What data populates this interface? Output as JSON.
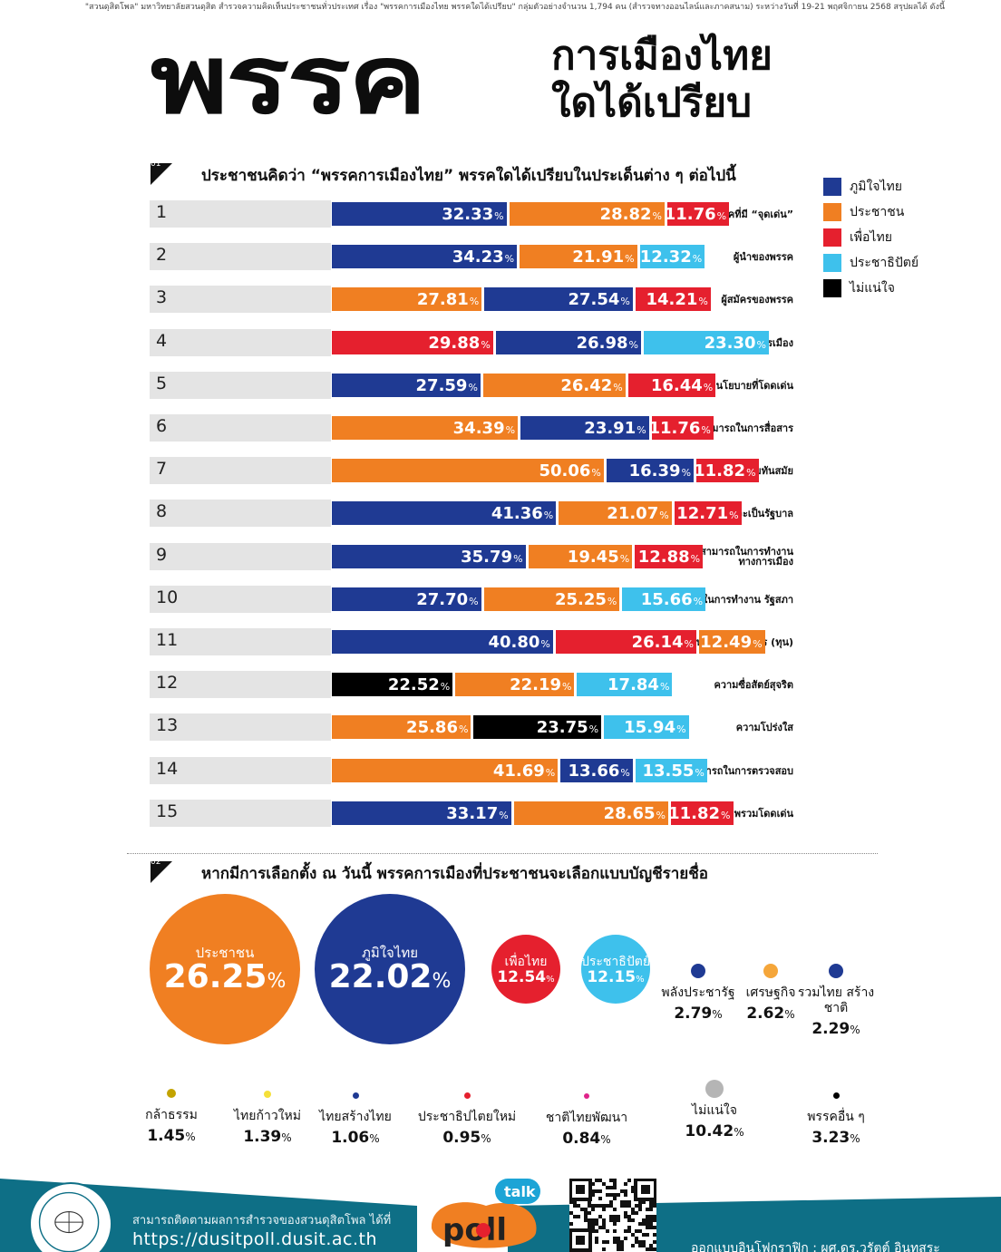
{
  "header": {
    "intro": "\"สวนดุสิตโพล\" มหาวิทยาลัยสวนดุสิต สำรวจความคิดเห็นประชาชนทั่วประเทศ เรื่อง \"พรรคการเมืองไทย พรรคใดได้เปรียบ\" กลุ่มตัวอย่างจำนวน 1,794 คน (สำรวจทางออนไลน์และภาคสนาม) ระหว่างวันที่ 19-21 พฤศจิกายน 2568 สรุปผลได้ ดังนี้",
    "title_big": "พรรค",
    "title_line1": "การเมืองไทย",
    "title_line2": "ใดได้เปรียบ"
  },
  "colors": {
    "bhumjaithai": "#1f3a93",
    "prachachon": "#f07f22",
    "pheuthai": "#e5202e",
    "democrat": "#3ec1ec",
    "unsure": "#000000",
    "footer_teal": "#0e6f86"
  },
  "section1": {
    "num": "01",
    "title": "ประชาชนคิดว่า “พรรคการเมืองไทย” พรรคใดได้เปรียบในประเด็นต่าง ๆ ต่อไปนี้"
  },
  "section2": {
    "num": "02",
    "title": "หากมีการเลือกตั้ง ณ วันนี้ พรรคการเมืองที่ประชาชนจะเลือกแบบบัญชีรายชื่อ"
  },
  "legend": [
    {
      "key": "bhumjaithai",
      "label": "ภูมิใจไทย"
    },
    {
      "key": "prachachon",
      "label": "ประชาชน"
    },
    {
      "key": "pheuthai",
      "label": "เพื่อไทย"
    },
    {
      "key": "democrat",
      "label": "ประชาธิปัตย์"
    },
    {
      "key": "unsure",
      "label": "ไม่แน่ใจ"
    }
  ],
  "chart_data": [
    {
      "type": "bar",
      "stacked": true,
      "orientation": "horizontal",
      "unit": "%",
      "rows": [
        {
          "num": "1",
          "label": "พรรคที่มี “จุดเด่น”",
          "segments": [
            {
              "party": "bhumjaithai",
              "value": 32.33
            },
            {
              "party": "prachachon",
              "value": 28.82
            },
            {
              "party": "pheuthai",
              "value": 11.76
            }
          ]
        },
        {
          "num": "2",
          "label": "ผู้นำของพรรค",
          "segments": [
            {
              "party": "bhumjaithai",
              "value": 34.23
            },
            {
              "party": "prachachon",
              "value": 21.91
            },
            {
              "party": "democrat",
              "value": 12.32
            }
          ]
        },
        {
          "num": "3",
          "label": "ผู้สมัครของพรรค",
          "segments": [
            {
              "party": "prachachon",
              "value": 27.81
            },
            {
              "party": "bhumjaithai",
              "value": 27.54
            },
            {
              "party": "pheuthai",
              "value": 14.21
            }
          ]
        },
        {
          "num": "4",
          "label": "ประสบการณ์ทางการเมือง",
          "segments": [
            {
              "party": "pheuthai",
              "value": 29.88
            },
            {
              "party": "bhumjaithai",
              "value": 26.98
            },
            {
              "party": "democrat",
              "value": 23.3
            }
          ]
        },
        {
          "num": "5",
          "label": "นโยบายที่โดดเด่น",
          "segments": [
            {
              "party": "bhumjaithai",
              "value": 27.59
            },
            {
              "party": "prachachon",
              "value": 26.42
            },
            {
              "party": "pheuthai",
              "value": 16.44
            }
          ]
        },
        {
          "num": "6",
          "label": "ความสามารถในการสื่อสาร",
          "segments": [
            {
              "party": "prachachon",
              "value": 34.39
            },
            {
              "party": "bhumjaithai",
              "value": 23.91
            },
            {
              "party": "pheuthai",
              "value": 11.76
            }
          ]
        },
        {
          "num": "7",
          "label": "ความทันสมัย",
          "segments": [
            {
              "party": "prachachon",
              "value": 50.06
            },
            {
              "party": "bhumjaithai",
              "value": 16.39
            },
            {
              "party": "pheuthai",
              "value": 11.82
            }
          ]
        },
        {
          "num": "8",
          "label": "ความพร้อมที่จะเป็นรัฐบาล",
          "segments": [
            {
              "party": "bhumjaithai",
              "value": 41.36
            },
            {
              "party": "prachachon",
              "value": 21.07
            },
            {
              "party": "pheuthai",
              "value": 12.71
            }
          ]
        },
        {
          "num": "9",
          "label": "ความสามารถในการทำงาน ทางการเมือง",
          "segments": [
            {
              "party": "bhumjaithai",
              "value": 35.79
            },
            {
              "party": "prachachon",
              "value": 19.45
            },
            {
              "party": "pheuthai",
              "value": 12.88
            }
          ]
        },
        {
          "num": "10",
          "label": "ความสามารถในการทำงาน รัฐสภา",
          "segments": [
            {
              "party": "bhumjaithai",
              "value": 27.7
            },
            {
              "party": "prachachon",
              "value": 25.25
            },
            {
              "party": "democrat",
              "value": 15.66
            }
          ]
        },
        {
          "num": "11",
          "label": "ความพร้อมในเรื่อง ทรัพยากร (ทุน)",
          "segments": [
            {
              "party": "bhumjaithai",
              "value": 40.8
            },
            {
              "party": "pheuthai",
              "value": 26.14
            },
            {
              "party": "prachachon",
              "value": 12.49
            }
          ]
        },
        {
          "num": "12",
          "label": "ความซื่อสัตย์สุจริต",
          "segments": [
            {
              "party": "unsure",
              "value": 22.52
            },
            {
              "party": "prachachon",
              "value": 22.19
            },
            {
              "party": "democrat",
              "value": 17.84
            }
          ]
        },
        {
          "num": "13",
          "label": "ความโปร่งใส",
          "segments": [
            {
              "party": "prachachon",
              "value": 25.86
            },
            {
              "party": "unsure",
              "value": 23.75
            },
            {
              "party": "democrat",
              "value": 15.94
            }
          ]
        },
        {
          "num": "14",
          "label": "ความสามารถในการตรวจสอบ",
          "segments": [
            {
              "party": "prachachon",
              "value": 41.69
            },
            {
              "party": "bhumjaithai",
              "value": 13.66
            },
            {
              "party": "democrat",
              "value": 13.55
            }
          ]
        },
        {
          "num": "15",
          "label": "พรรคที่มีภาพรวมโดดเด่น",
          "segments": [
            {
              "party": "bhumjaithai",
              "value": 33.17
            },
            {
              "party": "prachachon",
              "value": 28.65
            },
            {
              "party": "pheuthai",
              "value": 11.82
            }
          ]
        }
      ]
    },
    {
      "type": "bubble",
      "unit": "%",
      "items": [
        {
          "name": "ประชาชน",
          "value": 26.25,
          "color": "#f07f22"
        },
        {
          "name": "ภูมิใจไทย",
          "value": 22.02,
          "color": "#1f3a93"
        },
        {
          "name": "เพื่อไทย",
          "value": 12.54,
          "color": "#e5202e"
        },
        {
          "name": "ประชาธิปัตย์",
          "value": 12.15,
          "color": "#3ec1ec"
        },
        {
          "name": "พลังประชารัฐ",
          "value": 2.79,
          "color": "#1f3a93"
        },
        {
          "name": "เศรษฐกิจ",
          "value": 2.62,
          "color": "#f5a63a"
        },
        {
          "name": "รวมไทย สร้างชาติ",
          "value": 2.29,
          "color": "#1f3a93"
        },
        {
          "name": "กล้าธรรม",
          "value": 1.45,
          "color": "#c3a300"
        },
        {
          "name": "ไทยก้าวใหม่",
          "value": 1.39,
          "color": "#f5e03a"
        },
        {
          "name": "ไทยสร้างไทย",
          "value": 1.06,
          "color": "#1f3a93"
        },
        {
          "name": "ประชาธิปไตยใหม่",
          "value": 0.95,
          "color": "#e5202e"
        },
        {
          "name": "ชาติไทยพัฒนา",
          "value": 0.84,
          "color": "#e0238a"
        },
        {
          "name": "ไม่แน่ใจ",
          "value": 10.42,
          "color": "#b5b5b5"
        },
        {
          "name": "พรรคอื่น ๆ",
          "value": 3.23,
          "color": "#000000"
        }
      ]
    }
  ],
  "footer": {
    "follow_text": "สามารถติดตามผลการสำรวจของสวนดุสิตโพล ได้ที่",
    "url": "https://dusitpoll.dusit.ac.th",
    "credit": "ออกแบบอินโฟกราฟิก : ผศ.ดร.วรัตต์ อินทสระ",
    "poll_logo_main": "poll",
    "poll_logo_badge": "talk"
  }
}
